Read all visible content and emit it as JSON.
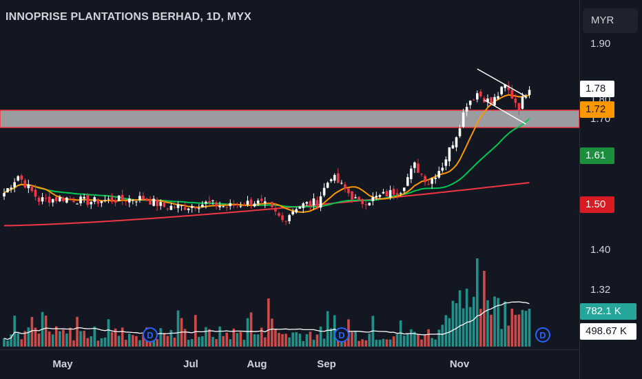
{
  "header": {
    "title": "INNOPRISE PLANTATIONS BERHAD, 1D, MYX"
  },
  "price_scale": {
    "currency": "MYR"
  },
  "colors": {
    "background": "#131722",
    "up_candle": "#ffffff",
    "down_candle": "#f23645",
    "ma_fast": "#ff9800",
    "ma_mid": "#00c853",
    "ma_slow": "#f23645",
    "zone": "#c9c9c9",
    "zone_border": "#f23645",
    "volume_up": "#26a69a",
    "volume_down": "#ef5350",
    "volume_ma": "#ffffff",
    "dividend_marker": "#2962ff"
  },
  "price_tags": [
    {
      "label": "1.78",
      "bg": "#ffffff",
      "fg": "#131722"
    },
    {
      "label": "1.72",
      "bg": "#ff9800",
      "fg": "#131722"
    },
    {
      "label": "1.61",
      "bg": "#1b8f3e",
      "fg": "#ffffff"
    },
    {
      "label": "1.50",
      "bg": "#d81b22",
      "fg": "#ffffff"
    },
    {
      "label": "782.1 K",
      "bg": "#26a69a",
      "fg": "#ffffff"
    },
    {
      "label": "498.67 K",
      "bg": "#ffffff",
      "fg": "#131722"
    }
  ],
  "dividend_markers": [
    {
      "label": "D",
      "date": "Jun"
    },
    {
      "label": "D",
      "date": "Sep"
    },
    {
      "label": "D",
      "date": "Dec"
    }
  ],
  "chart_data": {
    "type": "candlestick",
    "title": "INNOPRISE PLANTATIONS BERHAD, 1D, MYX",
    "y_ticks": [
      "1.90",
      "1.80",
      "1.70",
      "1.40",
      "1.32"
    ],
    "x_ticks": [
      "May",
      "Jul",
      "Aug",
      "Sep",
      "Nov"
    ],
    "ylim": [
      1.28,
      1.95
    ],
    "resistance_zone": [
      1.66,
      1.69
    ],
    "trend_lines": [
      {
        "name": "upper",
        "from": {
          "bar": 136,
          "price": 1.83
        },
        "to": {
          "bar": 150,
          "price": 1.75
        }
      },
      {
        "name": "lower",
        "from": {
          "bar": 138,
          "price": 1.74
        },
        "to": {
          "bar": 150,
          "price": 1.67
        }
      }
    ],
    "series": {
      "ma_fast": {
        "label": "1.72",
        "start": 1.47,
        "end": 1.72
      },
      "ma_mid": {
        "label": "1.61",
        "start": 1.47,
        "end": 1.61
      },
      "ma_slow": {
        "label": "1.50",
        "start": 1.375,
        "end": 1.5
      },
      "volume_last": "782.1 K",
      "volume_ma_last": "498.67 K"
    },
    "grid": false
  }
}
